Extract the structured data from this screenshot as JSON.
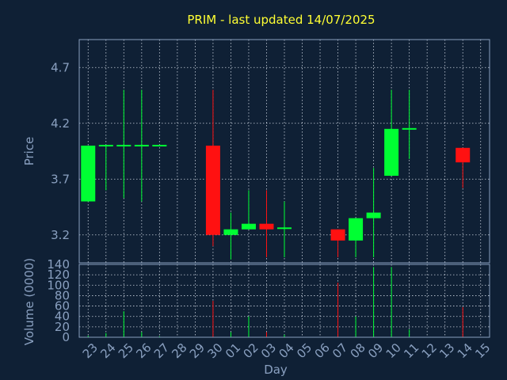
{
  "chart_data": {
    "type": "candlestick",
    "title": "PRIM - last updated 14/07/2025",
    "xlabel": "Day",
    "price_panel": {
      "ylabel": "Price",
      "yticks": [
        "3.2",
        "3.7",
        "4.2",
        "4.7"
      ],
      "ylim": [
        2.95,
        4.95
      ]
    },
    "volume_panel": {
      "ylabel": "Volume (0000)",
      "yticks": [
        "0",
        "20",
        "40",
        "60",
        "80",
        "100",
        "120",
        "140"
      ],
      "ylim": [
        0,
        140
      ]
    },
    "x_ticks": [
      "23",
      "24",
      "25",
      "26",
      "27",
      "28",
      "29",
      "30",
      "01",
      "02",
      "03",
      "04",
      "05",
      "06",
      "07",
      "08",
      "09",
      "10",
      "11",
      "12",
      "13",
      "14",
      "15"
    ],
    "candles": [
      {
        "day": "23",
        "open": 3.5,
        "high": 4.0,
        "low": 3.5,
        "close": 4.0,
        "volume": 3
      },
      {
        "day": "24",
        "open": 4.0,
        "high": 4.0,
        "low": 3.6,
        "close": 4.0,
        "volume": 8
      },
      {
        "day": "25",
        "open": 4.0,
        "high": 4.5,
        "low": 3.53,
        "close": 4.0,
        "volume": 50
      },
      {
        "day": "26",
        "open": 4.0,
        "high": 4.5,
        "low": 3.5,
        "close": 4.0,
        "volume": 10
      },
      {
        "day": "27",
        "open": 4.0,
        "high": 4.0,
        "low": 4.0,
        "close": 4.0,
        "volume": 2
      },
      {
        "day": "30",
        "open": 4.0,
        "high": 4.5,
        "low": 3.1,
        "close": 3.2,
        "volume": 70
      },
      {
        "day": "01",
        "open": 3.2,
        "high": 3.4,
        "low": 2.98,
        "close": 3.25,
        "volume": 10
      },
      {
        "day": "02",
        "open": 3.25,
        "high": 3.6,
        "low": 3.25,
        "close": 3.3,
        "volume": 40
      },
      {
        "day": "03",
        "open": 3.3,
        "high": 3.6,
        "low": 3.0,
        "close": 3.25,
        "volume": 10
      },
      {
        "day": "04",
        "open": 3.25,
        "high": 3.5,
        "low": 3.0,
        "close": 3.26,
        "volume": 5
      },
      {
        "day": "07",
        "open": 3.25,
        "high": 3.25,
        "low": 3.0,
        "close": 3.15,
        "volume": 105
      },
      {
        "day": "08",
        "open": 3.15,
        "high": 3.35,
        "low": 3.0,
        "close": 3.35,
        "volume": 40
      },
      {
        "day": "09",
        "open": 3.35,
        "high": 3.8,
        "low": 3.0,
        "close": 3.4,
        "volume": 135
      },
      {
        "day": "10",
        "open": 3.73,
        "high": 4.5,
        "low": 3.73,
        "close": 4.15,
        "volume": 135
      },
      {
        "day": "11",
        "open": 4.14,
        "high": 4.5,
        "low": 3.88,
        "close": 4.15,
        "volume": 15
      },
      {
        "day": "14",
        "open": 3.98,
        "high": 3.98,
        "low": 3.62,
        "close": 3.85,
        "volume": 58
      }
    ],
    "colors": {
      "up": "#00ff33",
      "down": "#ff1111",
      "background": "#0f2035",
      "axis_text": "#8aa0c0",
      "title": "#ffff33",
      "grid": "#c8d0dc"
    },
    "grid": true
  }
}
